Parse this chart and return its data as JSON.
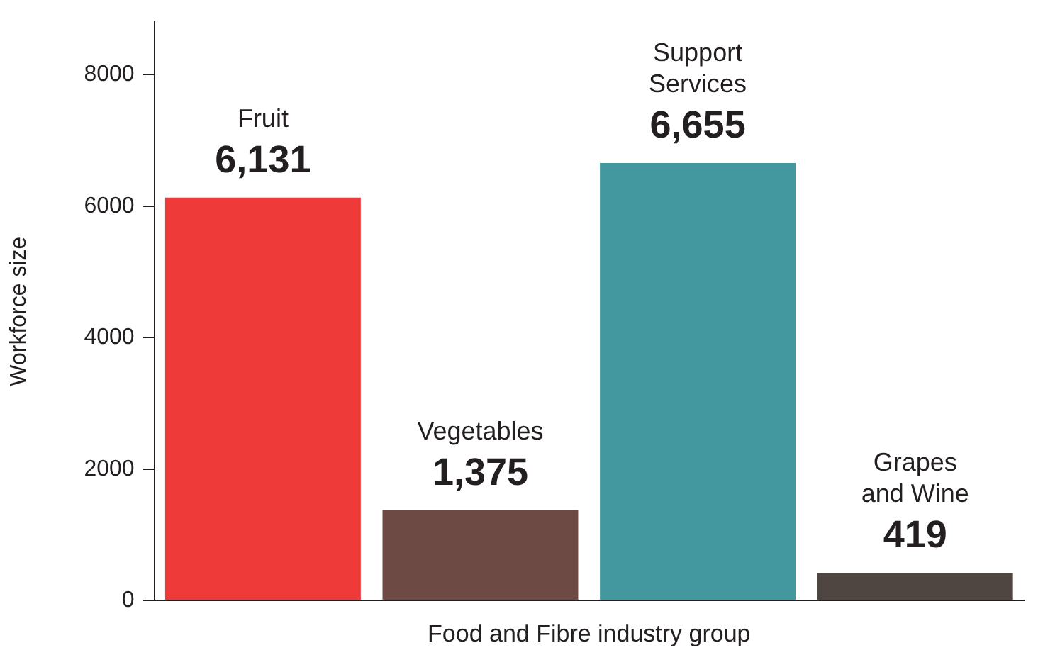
{
  "chart_data": {
    "type": "bar",
    "xlabel": "Food and Fibre industry group",
    "ylabel": "Workforce size",
    "categories": [
      "Fruit",
      "Vegetables",
      "Support Services",
      "Grapes and Wine"
    ],
    "values": [
      6131,
      1375,
      6655,
      419
    ],
    "colors": [
      "#ee3b3a",
      "#6e4a44",
      "#43979e",
      "#4f4641"
    ],
    "value_labels": [
      "6,131",
      "1,375",
      "6,655",
      "419"
    ],
    "ylim": [
      0,
      8800
    ],
    "yticks": [
      0,
      2000,
      4000,
      6000,
      8000
    ],
    "grid": false,
    "legend": false
  }
}
